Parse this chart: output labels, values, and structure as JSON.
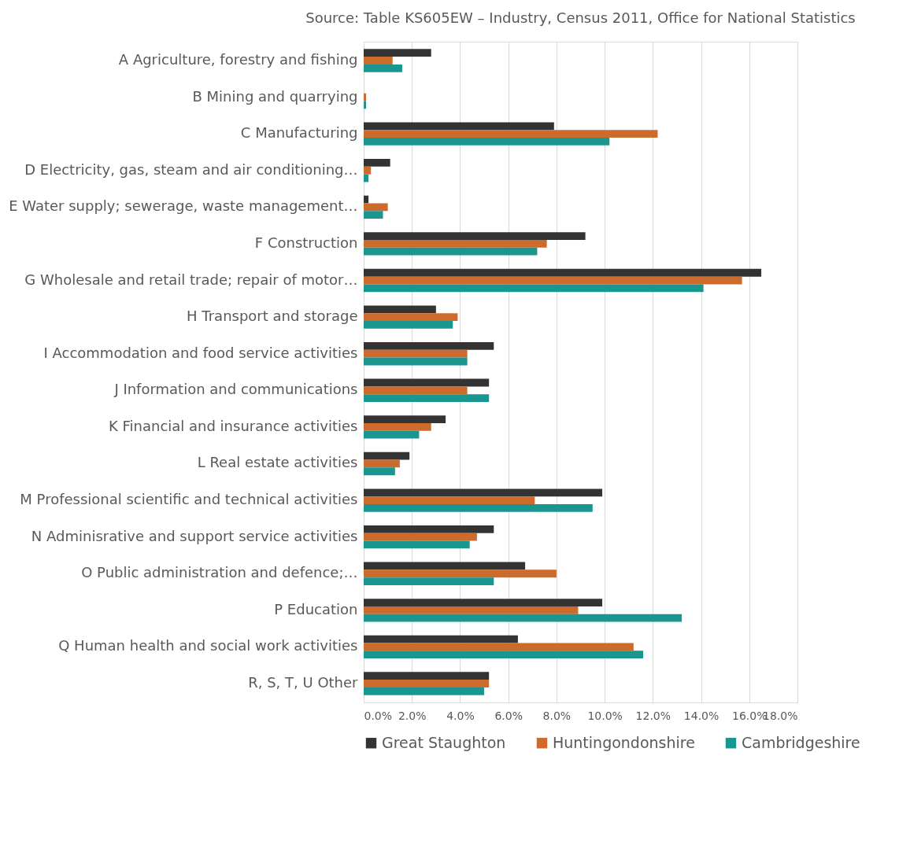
{
  "chart_data": {
    "type": "bar",
    "orientation": "horizontal",
    "title": "Source: Table KS605EW – Industry, Census 2011, Office for National Statistics",
    "categories": [
      "A Agriculture, forestry and fishing",
      "B Mining and quarrying",
      "C Manufacturing",
      "D Electricity, gas, steam and air conditioning…",
      "E Water supply; sewerage, waste management…",
      "F Construction",
      "G Wholesale and retail trade; repair of motor…",
      "H Transport and storage",
      "I Accommodation and food service activities",
      "J Information and communications",
      "K Financial and insurance activities",
      "L Real estate activities",
      "M Professional scientific and technical activities",
      "N Adminisrative and support service activities",
      "O Public administration and defence;…",
      "P Education",
      "Q Human health and social work activities",
      "R, S, T, U Other"
    ],
    "series": [
      {
        "name": "Great Staughton",
        "color": "#333333",
        "values": [
          2.8,
          0,
          7.9,
          1.1,
          0.2,
          9.2,
          16.5,
          3.0,
          5.4,
          5.2,
          3.4,
          1.9,
          9.9,
          5.4,
          6.7,
          9.9,
          6.4,
          5.2
        ]
      },
      {
        "name": "Huntingondonshire",
        "color": "#cd6b2d",
        "values": [
          1.2,
          0.1,
          12.2,
          0.3,
          1.0,
          7.6,
          15.7,
          3.9,
          4.3,
          4.3,
          2.8,
          1.5,
          7.1,
          4.7,
          8.0,
          8.9,
          11.2,
          5.2
        ]
      },
      {
        "name": "Cambridgeshire",
        "color": "#1a9690",
        "values": [
          1.6,
          0.1,
          10.2,
          0.2,
          0.8,
          7.2,
          14.1,
          3.7,
          4.3,
          5.2,
          2.3,
          1.3,
          9.5,
          4.4,
          5.4,
          13.2,
          11.6,
          5.0
        ]
      }
    ],
    "xlim": [
      0,
      18
    ],
    "xticks": [
      {
        "value": 0,
        "label": "0.0%"
      },
      {
        "value": 2,
        "label": "2.0%"
      },
      {
        "value": 4,
        "label": "4.0%"
      },
      {
        "value": 6,
        "label": "6.0%"
      },
      {
        "value": 8,
        "label": "8.0%"
      },
      {
        "value": 10,
        "label": "10.0%"
      },
      {
        "value": 12,
        "label": "12.0%"
      },
      {
        "value": 14,
        "label": "14.0%"
      },
      {
        "value": 16,
        "label": "16.0%"
      },
      {
        "value": 18,
        "label": "18.0%"
      }
    ],
    "grid": "x",
    "legend": "bottom"
  }
}
